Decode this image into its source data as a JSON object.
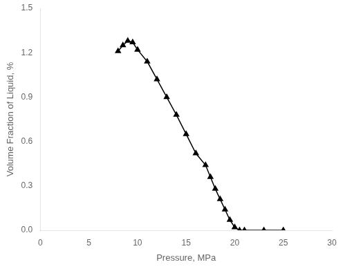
{
  "chart_data": {
    "type": "line",
    "xlabel": "Pressure, MPa",
    "ylabel": "Volume Fraction of Liquid, %",
    "x": [
      8.0,
      8.5,
      9.0,
      9.5,
      10.0,
      11.0,
      12.0,
      13.0,
      14.0,
      15.0,
      16.0,
      17.0,
      17.5,
      18.0,
      18.5,
      19.0,
      19.5,
      20.0,
      20.5,
      21.0,
      23.0,
      25.0
    ],
    "values": [
      1.21,
      1.25,
      1.28,
      1.27,
      1.22,
      1.14,
      1.02,
      0.9,
      0.78,
      0.65,
      0.52,
      0.44,
      0.36,
      0.28,
      0.21,
      0.14,
      0.07,
      0.02,
      0.0,
      0.0,
      0.0,
      0.0
    ],
    "color": "black",
    "marker": "triangle",
    "xlim": [
      0,
      30
    ],
    "ylim": [
      0.0,
      1.5
    ],
    "xticks": [
      0,
      5,
      10,
      15,
      20,
      25,
      30
    ],
    "yticks": [
      {
        "value": 0.0,
        "label": "0.0"
      },
      0.3,
      0.6,
      0.9,
      1.2,
      1.5
    ],
    "grid": false
  }
}
